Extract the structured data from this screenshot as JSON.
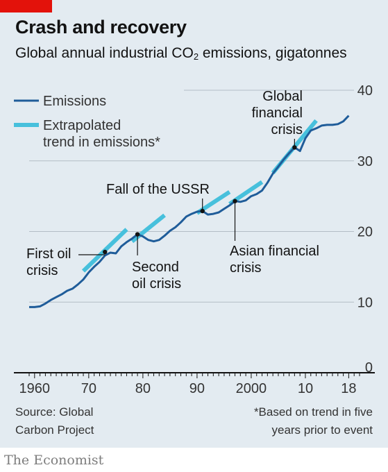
{
  "brand_color": "#e3120b",
  "header": {
    "title": "Crash and recovery",
    "subtitle_main": "Global annual industrial CO",
    "subtitle_sub": "2",
    "subtitle_rest": " emissions, gigatonnes"
  },
  "footer": {
    "source": "Source: Global\nCarbon Project",
    "footnote": "*Based on trend in five\nyears prior to event",
    "brand": "The Economist"
  },
  "chart_data": {
    "type": "line",
    "title": "Crash and recovery",
    "subtitle": "Global annual industrial CO2 emissions, gigatonnes",
    "xlabel": "",
    "ylabel": "",
    "xlim": [
      1959,
      2020
    ],
    "ylim": [
      0,
      40
    ],
    "x_ticks": [
      1960,
      1970,
      1980,
      1990,
      2000,
      2010,
      2018
    ],
    "x_tick_labels": [
      "1960",
      "70",
      "80",
      "90",
      "2000",
      "10",
      "18"
    ],
    "y_ticks": [
      0,
      10,
      20,
      30,
      40
    ],
    "y_tick_labels": [
      "0",
      "10",
      "20",
      "30",
      "40"
    ],
    "grid": true,
    "legend": "top-left",
    "series": [
      {
        "name": "Emissions",
        "color": "#1f5c99",
        "x": [
          1959,
          1960,
          1961,
          1962,
          1963,
          1964,
          1965,
          1966,
          1967,
          1968,
          1969,
          1970,
          1971,
          1972,
          1973,
          1974,
          1975,
          1976,
          1977,
          1978,
          1979,
          1980,
          1981,
          1982,
          1983,
          1984,
          1985,
          1986,
          1987,
          1988,
          1989,
          1990,
          1991,
          1992,
          1993,
          1994,
          1995,
          1996,
          1997,
          1998,
          1999,
          2000,
          2001,
          2002,
          2003,
          2004,
          2005,
          2006,
          2007,
          2008,
          2009,
          2010,
          2011,
          2012,
          2013,
          2014,
          2015,
          2016,
          2017,
          2018
        ],
        "y": [
          9.3,
          9.3,
          9.4,
          9.8,
          10.3,
          10.7,
          11.1,
          11.6,
          11.9,
          12.5,
          13.2,
          14.2,
          15,
          15.7,
          16.6,
          17.0,
          16.9,
          17.9,
          18.5,
          19.0,
          19.6,
          19.3,
          18.8,
          18.6,
          18.8,
          19.4,
          20.1,
          20.6,
          21.3,
          22.1,
          22.5,
          22.8,
          22.9,
          22.4,
          22.5,
          22.7,
          23.2,
          23.7,
          24.3,
          24.2,
          24.4,
          25.0,
          25.3,
          25.8,
          26.9,
          28.2,
          29.2,
          30.2,
          31.1,
          31.9,
          31.4,
          33.2,
          34.3,
          34.6,
          35.0,
          35.1,
          35.1,
          35.2,
          35.6,
          36.4
        ]
      },
      {
        "name": "Extrapolated trend in emissions*",
        "color": "#47c0dc",
        "segments": [
          {
            "event": "First oil crisis",
            "x": [
              1969,
              1977
            ],
            "y": [
              14.4,
              20.3
            ]
          },
          {
            "event": "Second oil crisis",
            "x": [
              1978,
              1984
            ],
            "y": [
              18.6,
              22.3
            ]
          },
          {
            "event": "Fall of the USSR",
            "x": [
              1990,
              1996
            ],
            "y": [
              22.6,
              25.6
            ]
          },
          {
            "event": "Asian financial crisis",
            "x": [
              1996,
              2002
            ],
            "y": [
              23.9,
              27.0
            ]
          },
          {
            "event": "Global financial crisis",
            "x": [
              2004,
              2012
            ],
            "y": [
              28.3,
              35.7
            ]
          }
        ]
      }
    ],
    "annotations": [
      {
        "id": "first-oil",
        "lines": [
          "First oil",
          "crisis"
        ],
        "x": 1973,
        "y": 17.1
      },
      {
        "id": "second-oil",
        "lines": [
          "Second",
          "oil crisis"
        ],
        "x": 1979,
        "y": 19.6
      },
      {
        "id": "ussr",
        "lines": [
          "Fall of the USSR"
        ],
        "x": 1991,
        "y": 22.9
      },
      {
        "id": "asian",
        "lines": [
          "Asian financial",
          "crisis"
        ],
        "x": 1997,
        "y": 24.3
      },
      {
        "id": "gfc",
        "lines": [
          "Global",
          "financial",
          "crisis"
        ],
        "x": 2008,
        "y": 31.9
      }
    ]
  }
}
